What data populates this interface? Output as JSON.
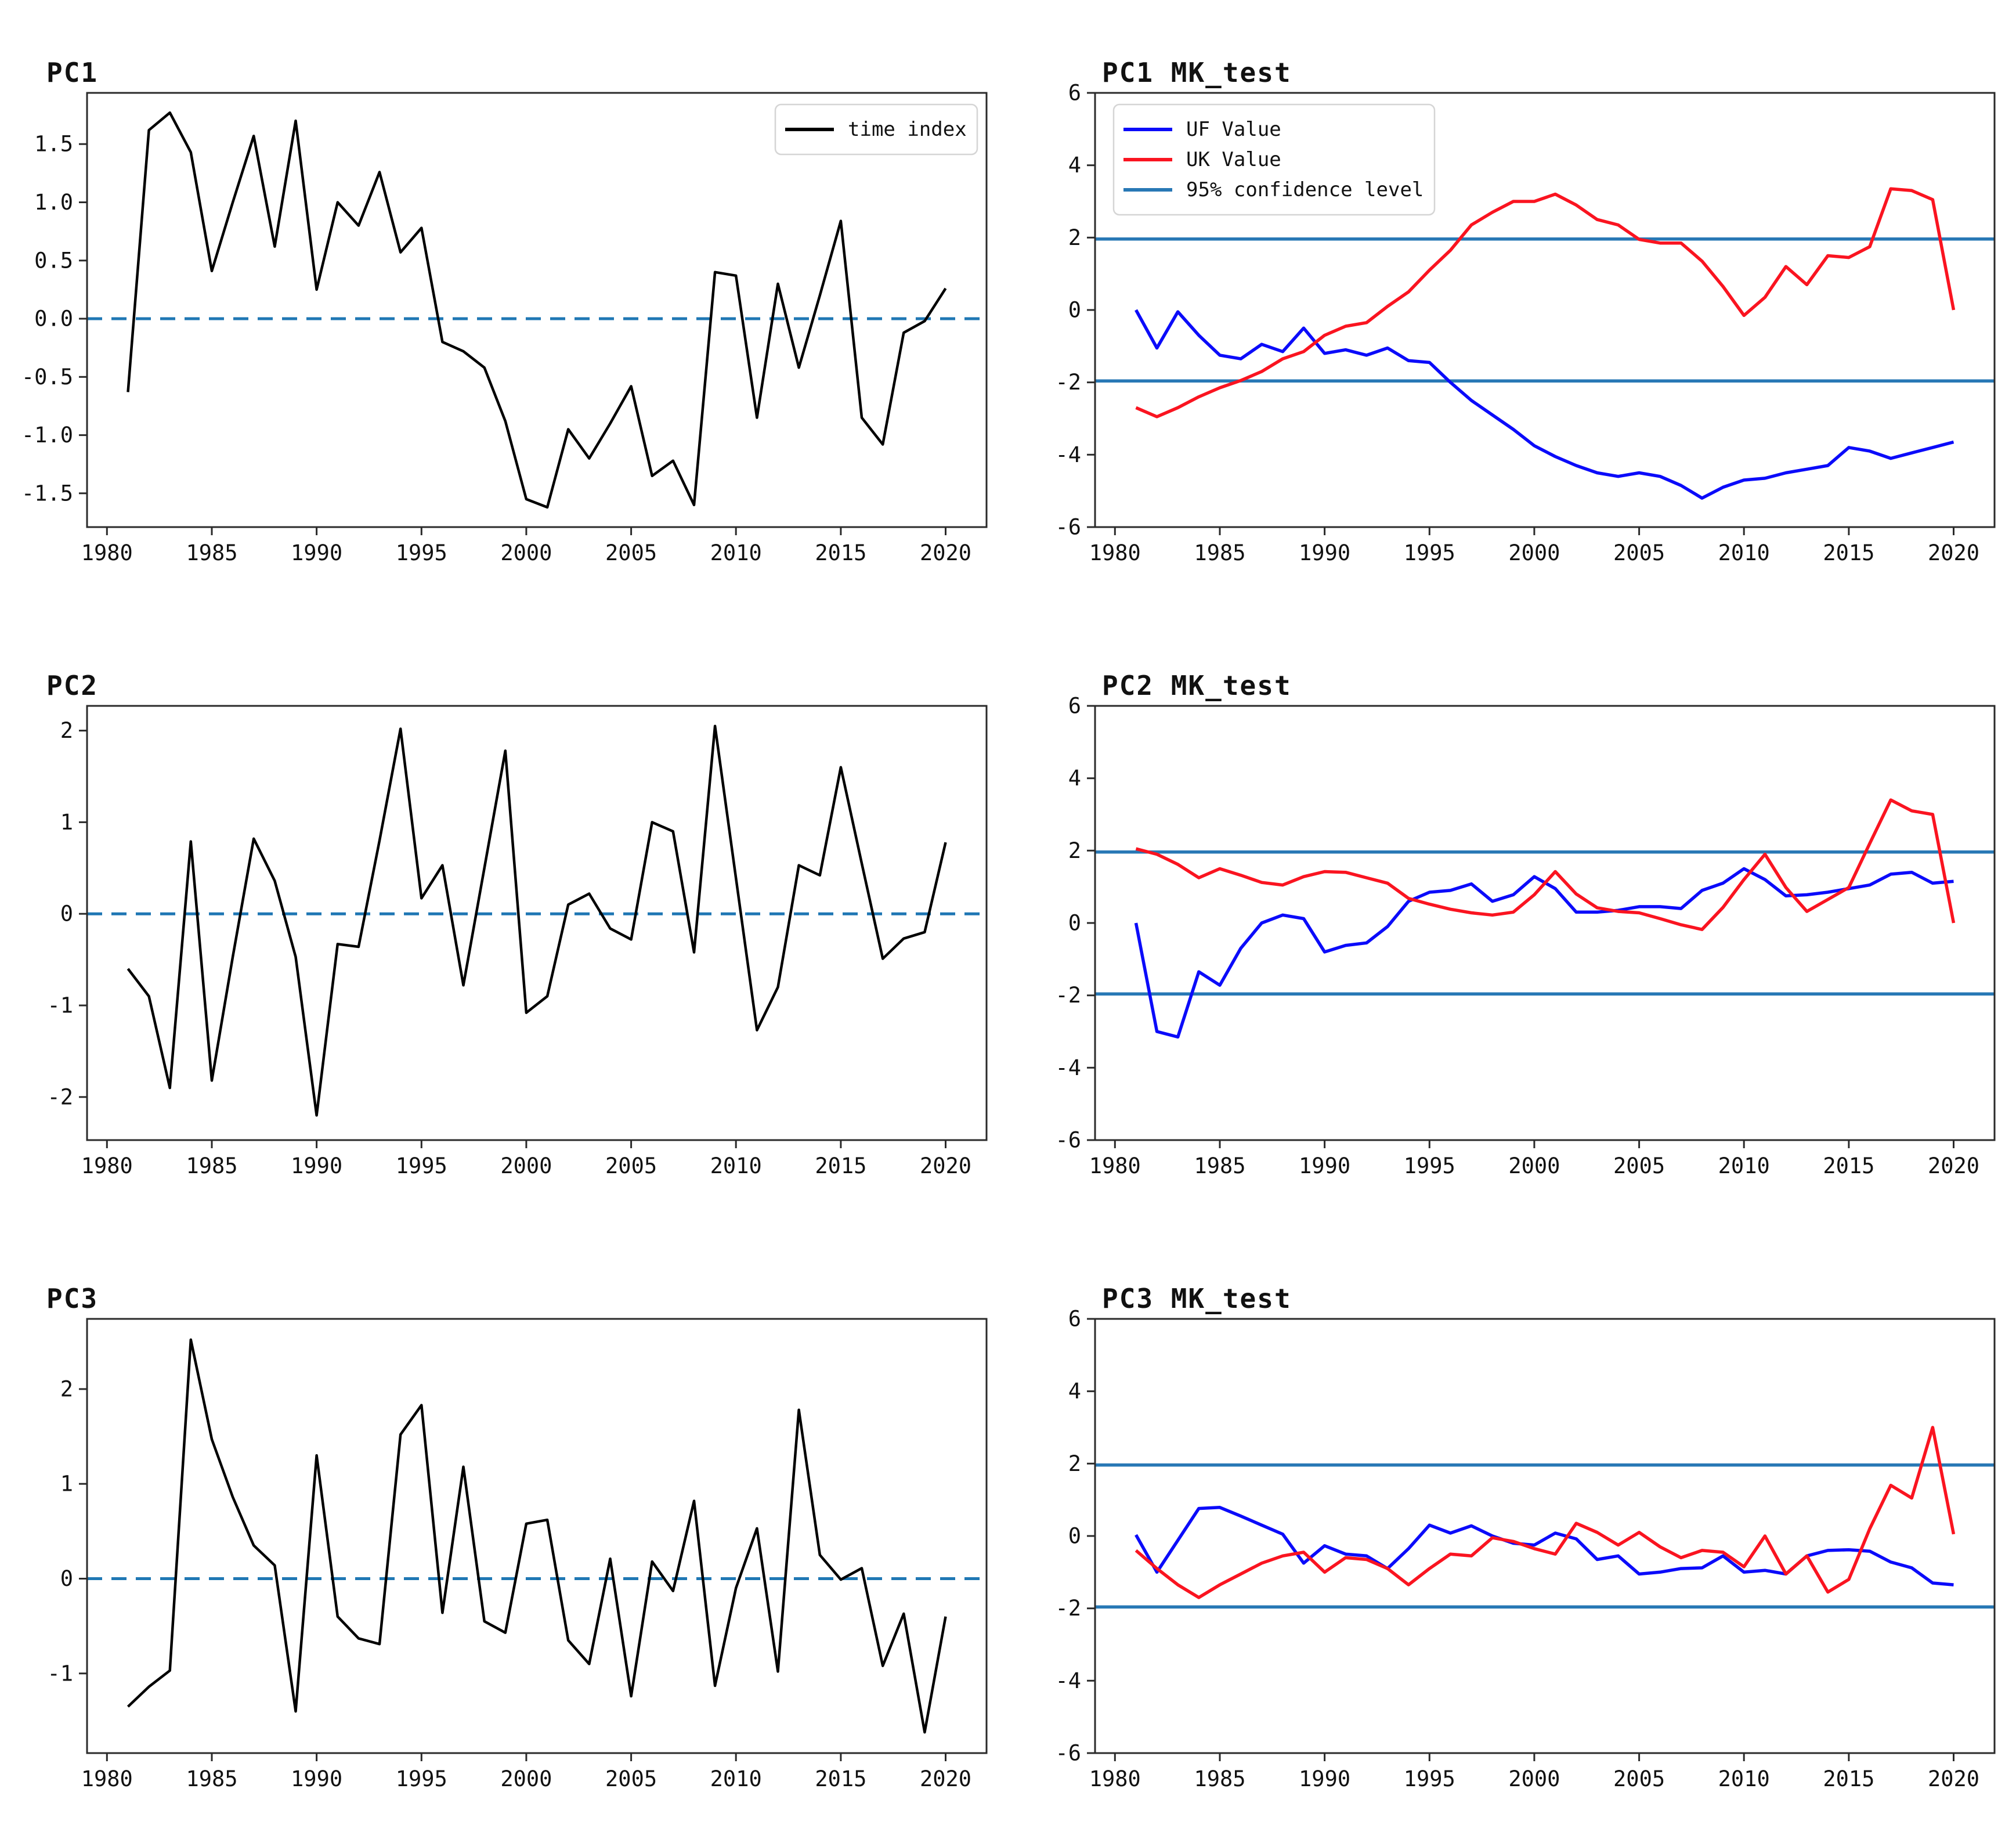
{
  "figure": {
    "background": "#ffffff",
    "frame_color": "#2a2a2a",
    "text_color": "#111111",
    "legend_border_color": "#d5d5d5",
    "legend_background": "#ffffff"
  },
  "chart_data": [
    {
      "type": "line",
      "title": "PC1",
      "xlabel": "",
      "ylabel": "",
      "xlim": [
        1979.05,
        2021.95
      ],
      "ylim": [
        -1.79,
        1.94
      ],
      "xticks": [
        1980,
        1985,
        1990,
        1995,
        2000,
        2005,
        2010,
        2015,
        2020
      ],
      "yticks": [
        -1.5,
        -1.0,
        -0.5,
        0.0,
        0.5,
        1.0,
        1.5
      ],
      "ytick_labels": [
        "-1.5",
        "-1.0",
        "-0.5",
        "0.0",
        "0.5",
        "1.0",
        "1.5"
      ],
      "grid": false,
      "legend": {
        "position": "upper right",
        "entries": [
          {
            "label": "time index",
            "color": "#000000",
            "width": 6,
            "dash": ""
          }
        ]
      },
      "hlines": [
        {
          "name": "zero-dashed-line",
          "y": 0,
          "color": "#1f77b4",
          "style": "dashed",
          "width": 5
        }
      ],
      "x": [
        1981,
        1982,
        1983,
        1984,
        1985,
        1986,
        1987,
        1988,
        1989,
        1990,
        1991,
        1992,
        1993,
        1994,
        1995,
        1996,
        1997,
        1998,
        1999,
        2000,
        2001,
        2002,
        2003,
        2004,
        2005,
        2006,
        2007,
        2008,
        2009,
        2010,
        2011,
        2012,
        2013,
        2014,
        2015,
        2016,
        2017,
        2018,
        2019,
        2020
      ],
      "series": [
        {
          "name": "time index",
          "color": "#000000",
          "width": 4.5,
          "values": [
            -0.63,
            1.62,
            1.77,
            1.43,
            0.41,
            1.0,
            1.57,
            0.62,
            1.7,
            0.25,
            1.0,
            0.8,
            1.26,
            0.57,
            0.78,
            -0.2,
            -0.28,
            -0.42,
            -0.88,
            -1.55,
            -1.62,
            -0.95,
            -1.2,
            -0.9,
            -0.58,
            -1.35,
            -1.22,
            -1.6,
            0.4,
            0.37,
            -0.85,
            0.3,
            -0.42,
            0.2,
            0.84,
            -0.85,
            -1.08,
            -0.12,
            -0.02,
            0.26
          ]
        }
      ]
    },
    {
      "type": "line",
      "title": "PC1 MK_test",
      "xlabel": "",
      "ylabel": "",
      "xlim": [
        1979.05,
        2021.95
      ],
      "ylim": [
        -6,
        6
      ],
      "xticks": [
        1980,
        1985,
        1990,
        1995,
        2000,
        2005,
        2010,
        2015,
        2020
      ],
      "yticks": [
        -6,
        -4,
        -2,
        0,
        2,
        4,
        6
      ],
      "ytick_labels": [
        "-6",
        "-4",
        "-2",
        "0",
        "2",
        "4",
        "6"
      ],
      "grid": false,
      "legend": {
        "position": "upper left",
        "entries": [
          {
            "label": "UF Value",
            "color": "#0b0bfa",
            "width": 6,
            "dash": ""
          },
          {
            "label": "UK Value",
            "color": "#fa1420",
            "width": 6,
            "dash": ""
          },
          {
            "label": "95% confidence level",
            "color": "#2878b5",
            "width": 6,
            "dash": ""
          }
        ]
      },
      "hlines": [
        {
          "name": "confidence-upper-line",
          "y": 1.96,
          "color": "#2878b5",
          "style": "solid",
          "width": 5.5
        },
        {
          "name": "confidence-lower-line",
          "y": -1.96,
          "color": "#2878b5",
          "style": "solid",
          "width": 5.5
        }
      ],
      "x": [
        1981,
        1982,
        1983,
        1984,
        1985,
        1986,
        1987,
        1988,
        1989,
        1990,
        1991,
        1992,
        1993,
        1994,
        1995,
        1996,
        1997,
        1998,
        1999,
        2000,
        2001,
        2002,
        2003,
        2004,
        2005,
        2006,
        2007,
        2008,
        2009,
        2010,
        2011,
        2012,
        2013,
        2014,
        2015,
        2016,
        2017,
        2018,
        2019,
        2020
      ],
      "series": [
        {
          "name": "UF Value",
          "color": "#0b0bfa",
          "width": 5.5,
          "values": [
            0.0,
            -1.05,
            -0.05,
            -0.7,
            -1.25,
            -1.35,
            -0.95,
            -1.15,
            -0.5,
            -1.2,
            -1.1,
            -1.25,
            -1.05,
            -1.4,
            -1.45,
            -2.0,
            -2.5,
            -2.9,
            -3.3,
            -3.75,
            -4.05,
            -4.3,
            -4.5,
            -4.6,
            -4.5,
            -4.6,
            -4.85,
            -5.2,
            -4.9,
            -4.7,
            -4.65,
            -4.5,
            -4.4,
            -4.3,
            -3.8,
            -3.9,
            -4.1,
            -3.95,
            -3.8,
            -3.65
          ]
        },
        {
          "name": "UK Value",
          "color": "#fa1420",
          "width": 5.5,
          "values": [
            -2.7,
            -2.95,
            -2.7,
            -2.4,
            -2.15,
            -1.95,
            -1.7,
            -1.35,
            -1.15,
            -0.7,
            -0.45,
            -0.35,
            0.1,
            0.5,
            1.1,
            1.65,
            2.35,
            2.7,
            3.0,
            3.0,
            3.2,
            2.9,
            2.5,
            2.35,
            1.95,
            1.85,
            1.85,
            1.35,
            0.65,
            -0.15,
            0.35,
            1.2,
            0.7,
            1.5,
            1.45,
            1.75,
            3.35,
            3.3,
            3.05,
            0.0
          ]
        }
      ]
    },
    {
      "type": "line",
      "title": "PC2",
      "xlabel": "",
      "ylabel": "",
      "xlim": [
        1979.05,
        2021.95
      ],
      "ylim": [
        -2.47,
        2.27
      ],
      "xticks": [
        1980,
        1985,
        1990,
        1995,
        2000,
        2005,
        2010,
        2015,
        2020
      ],
      "yticks": [
        -2,
        -1,
        0,
        1,
        2
      ],
      "ytick_labels": [
        "-2",
        "-1",
        "0",
        "1",
        "2"
      ],
      "grid": false,
      "legend": null,
      "hlines": [
        {
          "name": "zero-dashed-line",
          "y": 0,
          "color": "#1f77b4",
          "style": "dashed",
          "width": 5
        }
      ],
      "x": [
        1981,
        1982,
        1983,
        1984,
        1985,
        1986,
        1987,
        1988,
        1989,
        1990,
        1991,
        1992,
        1993,
        1994,
        1995,
        1996,
        1997,
        1998,
        1999,
        2000,
        2001,
        2002,
        2003,
        2004,
        2005,
        2006,
        2007,
        2008,
        2009,
        2010,
        2011,
        2012,
        2013,
        2014,
        2015,
        2016,
        2017,
        2018,
        2019,
        2020
      ],
      "series": [
        {
          "name": "time index",
          "color": "#000000",
          "width": 4.5,
          "values": [
            -0.6,
            -0.9,
            -1.9,
            0.79,
            -1.82,
            -0.47,
            0.82,
            0.36,
            -0.47,
            -2.2,
            -0.33,
            -0.36,
            0.8,
            2.02,
            0.17,
            0.53,
            -0.78,
            0.5,
            1.78,
            -1.08,
            -0.9,
            0.1,
            0.22,
            -0.16,
            -0.28,
            1.0,
            0.9,
            -0.42,
            2.05,
            0.39,
            -1.27,
            -0.8,
            0.53,
            0.42,
            1.6,
            0.55,
            -0.49,
            -0.27,
            -0.2,
            0.78
          ]
        }
      ]
    },
    {
      "type": "line",
      "title": "PC2 MK_test",
      "xlabel": "",
      "ylabel": "",
      "xlim": [
        1979.05,
        2021.95
      ],
      "ylim": [
        -6,
        6
      ],
      "xticks": [
        1980,
        1985,
        1990,
        1995,
        2000,
        2005,
        2010,
        2015,
        2020
      ],
      "yticks": [
        -6,
        -4,
        -2,
        0,
        2,
        4,
        6
      ],
      "ytick_labels": [
        "-6",
        "-4",
        "-2",
        "0",
        "2",
        "4",
        "6"
      ],
      "grid": false,
      "legend": null,
      "hlines": [
        {
          "name": "confidence-upper-line",
          "y": 1.96,
          "color": "#2878b5",
          "style": "solid",
          "width": 5.5
        },
        {
          "name": "confidence-lower-line",
          "y": -1.96,
          "color": "#2878b5",
          "style": "solid",
          "width": 5.5
        }
      ],
      "x": [
        1981,
        1982,
        1983,
        1984,
        1985,
        1986,
        1987,
        1988,
        1989,
        1990,
        1991,
        1992,
        1993,
        1994,
        1995,
        1996,
        1997,
        1998,
        1999,
        2000,
        2001,
        2002,
        2003,
        2004,
        2005,
        2006,
        2007,
        2008,
        2009,
        2010,
        2011,
        2012,
        2013,
        2014,
        2015,
        2016,
        2017,
        2018,
        2019,
        2020
      ],
      "series": [
        {
          "name": "UF Value",
          "color": "#0b0bfa",
          "width": 5.5,
          "values": [
            0.0,
            -3.0,
            -3.15,
            -1.35,
            -1.72,
            -0.7,
            0.0,
            0.22,
            0.12,
            -0.8,
            -0.62,
            -0.55,
            -0.1,
            0.6,
            0.85,
            0.9,
            1.08,
            0.6,
            0.78,
            1.28,
            0.95,
            0.3,
            0.3,
            0.35,
            0.45,
            0.45,
            0.4,
            0.9,
            1.1,
            1.5,
            1.2,
            0.75,
            0.78,
            0.85,
            0.95,
            1.05,
            1.35,
            1.4,
            1.1,
            1.15
          ]
        },
        {
          "name": "UK Value",
          "color": "#fa1420",
          "width": 5.5,
          "values": [
            2.05,
            1.9,
            1.62,
            1.25,
            1.5,
            1.32,
            1.12,
            1.05,
            1.28,
            1.42,
            1.4,
            1.25,
            1.1,
            0.68,
            0.52,
            0.38,
            0.28,
            0.22,
            0.3,
            0.78,
            1.42,
            0.8,
            0.42,
            0.32,
            0.28,
            0.12,
            -0.05,
            -0.18,
            0.43,
            1.2,
            1.9,
            0.98,
            0.32,
            0.65,
            0.98,
            2.2,
            3.4,
            3.1,
            3.0,
            0.0
          ]
        }
      ]
    },
    {
      "type": "line",
      "title": "PC3",
      "xlabel": "",
      "ylabel": "",
      "xlim": [
        1979.05,
        2021.95
      ],
      "ylim": [
        -1.84,
        2.74
      ],
      "xticks": [
        1980,
        1985,
        1990,
        1995,
        2000,
        2005,
        2010,
        2015,
        2020
      ],
      "yticks": [
        -1,
        0,
        1,
        2
      ],
      "ytick_labels": [
        "-1",
        "0",
        "1",
        "2"
      ],
      "grid": false,
      "legend": null,
      "hlines": [
        {
          "name": "zero-dashed-line",
          "y": 0,
          "color": "#1f77b4",
          "style": "dashed",
          "width": 5
        }
      ],
      "x": [
        1981,
        1982,
        1983,
        1984,
        1985,
        1986,
        1987,
        1988,
        1989,
        1990,
        1991,
        1992,
        1993,
        1994,
        1995,
        1996,
        1997,
        1998,
        1999,
        2000,
        2001,
        2002,
        2003,
        2004,
        2005,
        2006,
        2007,
        2008,
        2009,
        2010,
        2011,
        2012,
        2013,
        2014,
        2015,
        2016,
        2017,
        2018,
        2019,
        2020
      ],
      "series": [
        {
          "name": "time index",
          "color": "#000000",
          "width": 4.5,
          "values": [
            -1.35,
            -1.14,
            -0.97,
            2.52,
            1.47,
            0.86,
            0.35,
            0.14,
            -1.4,
            1.3,
            -0.4,
            -0.63,
            -0.69,
            1.52,
            1.83,
            -0.36,
            1.18,
            -0.45,
            -0.57,
            0.58,
            0.62,
            -0.65,
            -0.9,
            0.21,
            -1.24,
            0.18,
            -0.13,
            0.82,
            -1.13,
            -0.1,
            0.53,
            -0.98,
            1.78,
            0.25,
            -0.01,
            0.11,
            -0.92,
            -0.37,
            -1.62,
            -0.4
          ]
        }
      ]
    },
    {
      "type": "line",
      "title": "PC3 MK_test",
      "xlabel": "",
      "ylabel": "",
      "xlim": [
        1979.05,
        2021.95
      ],
      "ylim": [
        -6,
        6
      ],
      "xticks": [
        1980,
        1985,
        1990,
        1995,
        2000,
        2005,
        2010,
        2015,
        2020
      ],
      "yticks": [
        -6,
        -4,
        -2,
        0,
        2,
        4,
        6
      ],
      "ytick_labels": [
        "-6",
        "-4",
        "-2",
        "0",
        "2",
        "4",
        "6"
      ],
      "grid": false,
      "legend": null,
      "hlines": [
        {
          "name": "confidence-upper-line",
          "y": 1.96,
          "color": "#2878b5",
          "style": "solid",
          "width": 5.5
        },
        {
          "name": "confidence-lower-line",
          "y": -1.96,
          "color": "#2878b5",
          "style": "solid",
          "width": 5.5
        }
      ],
      "x": [
        1981,
        1982,
        1983,
        1984,
        1985,
        1986,
        1987,
        1988,
        1989,
        1990,
        1991,
        1992,
        1993,
        1994,
        1995,
        1996,
        1997,
        1998,
        1999,
        2000,
        2001,
        2002,
        2003,
        2004,
        2005,
        2006,
        2007,
        2008,
        2009,
        2010,
        2011,
        2012,
        2013,
        2014,
        2015,
        2016,
        2017,
        2018,
        2019,
        2020
      ],
      "series": [
        {
          "name": "UF Value",
          "color": "#0b0bfa",
          "width": 5.5,
          "values": [
            0.03,
            -1.0,
            -0.12,
            0.76,
            0.79,
            0.55,
            0.3,
            0.05,
            -0.75,
            -0.27,
            -0.5,
            -0.55,
            -0.9,
            -0.35,
            0.3,
            0.08,
            0.28,
            0.0,
            -0.2,
            -0.25,
            0.08,
            -0.08,
            -0.65,
            -0.55,
            -1.05,
            -1.0,
            -0.9,
            -0.88,
            -0.55,
            -1.0,
            -0.95,
            -1.05,
            -0.55,
            -0.4,
            -0.38,
            -0.42,
            -0.72,
            -0.88,
            -1.3,
            -1.35
          ]
        },
        {
          "name": "UK Value",
          "color": "#fa1420",
          "width": 5.5,
          "values": [
            -0.4,
            -0.9,
            -1.35,
            -1.7,
            -1.35,
            -1.05,
            -0.75,
            -0.55,
            -0.45,
            -1.0,
            -0.6,
            -0.65,
            -0.9,
            -1.35,
            -0.9,
            -0.5,
            -0.55,
            -0.05,
            -0.15,
            -0.35,
            -0.5,
            0.35,
            0.1,
            -0.25,
            0.1,
            -0.3,
            -0.6,
            -0.4,
            -0.45,
            -0.85,
            0.0,
            -1.05,
            -0.55,
            -1.55,
            -1.2,
            0.2,
            1.4,
            1.05,
            3.0,
            0.05
          ]
        }
      ]
    }
  ]
}
